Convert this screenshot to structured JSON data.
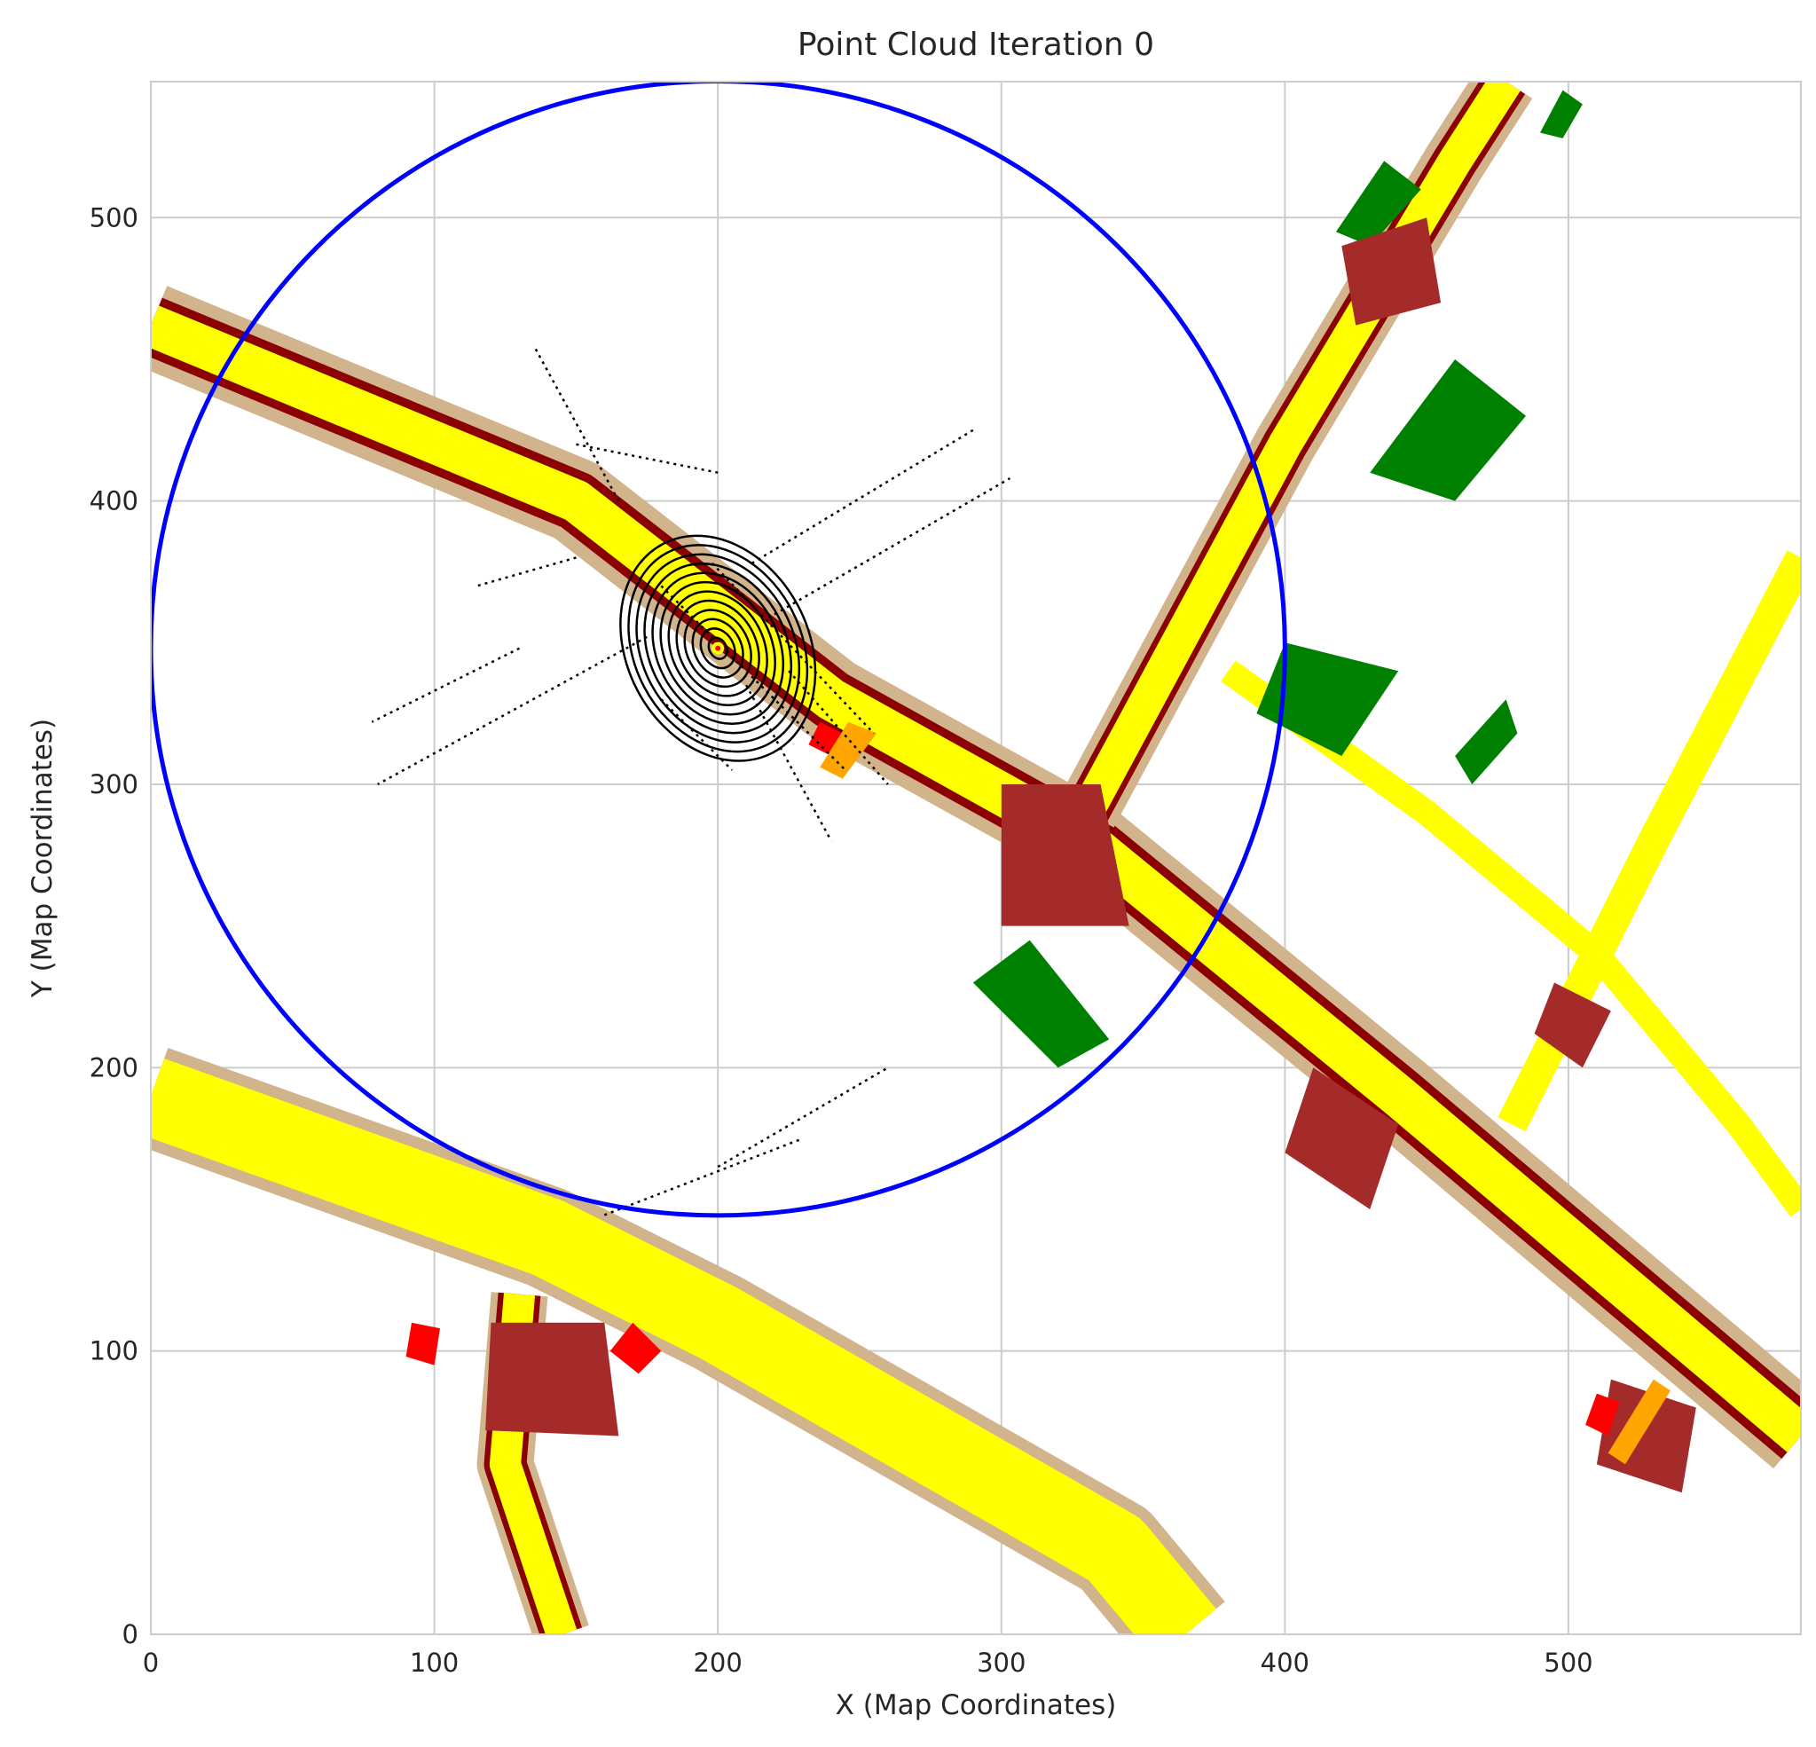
{
  "chart_data": {
    "type": "scatter",
    "title": "Point Cloud Iteration 0",
    "xlabel": "X (Map Coordinates)",
    "ylabel": "Y (Map Coordinates)",
    "xlim": [
      0,
      582
    ],
    "ylim": [
      0,
      548
    ],
    "xticks": [
      0,
      100,
      200,
      300,
      400,
      500
    ],
    "yticks": [
      0,
      100,
      200,
      300,
      400,
      500
    ],
    "grid": true,
    "background_map": {
      "colors": {
        "sidewalk": "#d2b48c",
        "lane": "#ffff00",
        "road_edge": "#8b0000",
        "crossing": "#a52a2a",
        "marker": "#ff0000",
        "stop_line": "#ffa500",
        "vegetation": "#008000"
      },
      "roads": [
        {
          "kind": "sidewalk",
          "width": 30,
          "points": [
            [
              0,
              462
            ],
            [
              150,
              400
            ],
            [
              240,
              330
            ],
            [
              330,
              280
            ],
            [
              440,
              190
            ],
            [
              582,
              70
            ]
          ]
        },
        {
          "kind": "road_edge",
          "width": 21,
          "points": [
            [
              0,
              462
            ],
            [
              150,
              400
            ],
            [
              240,
              330
            ],
            [
              330,
              280
            ],
            [
              440,
              190
            ],
            [
              582,
              70
            ]
          ]
        },
        {
          "kind": "lane",
          "width": 15,
          "points": [
            [
              0,
              462
            ],
            [
              150,
              400
            ],
            [
              240,
              330
            ],
            [
              330,
              280
            ],
            [
              440,
              190
            ],
            [
              582,
              70
            ]
          ]
        },
        {
          "kind": "sidewalk",
          "width": 36,
          "points": [
            [
              0,
              190
            ],
            [
              140,
              140
            ],
            [
              200,
              110
            ],
            [
              340,
              30
            ],
            [
              365,
              0
            ]
          ]
        },
        {
          "kind": "lane",
          "width": 28,
          "points": [
            [
              0,
              190
            ],
            [
              140,
              140
            ],
            [
              200,
              110
            ],
            [
              340,
              30
            ],
            [
              365,
              0
            ]
          ]
        },
        {
          "kind": "sidewalk",
          "width": 20,
          "points": [
            [
              130,
              120
            ],
            [
              125,
              60
            ],
            [
              145,
              0
            ]
          ]
        },
        {
          "kind": "road_edge",
          "width": 15,
          "points": [
            [
              130,
              120
            ],
            [
              125,
              60
            ],
            [
              145,
              0
            ]
          ]
        },
        {
          "kind": "lane",
          "width": 11,
          "points": [
            [
              130,
              120
            ],
            [
              125,
              60
            ],
            [
              145,
              0
            ]
          ]
        },
        {
          "kind": "sidewalk",
          "width": 22,
          "points": [
            [
              330,
              290
            ],
            [
              400,
              420
            ],
            [
              460,
              520
            ],
            [
              478,
              548
            ]
          ]
        },
        {
          "kind": "road_edge",
          "width": 16,
          "points": [
            [
              330,
              290
            ],
            [
              400,
              420
            ],
            [
              460,
              520
            ],
            [
              478,
              548
            ]
          ]
        },
        {
          "kind": "lane",
          "width": 12,
          "points": [
            [
              330,
              290
            ],
            [
              400,
              420
            ],
            [
              460,
              520
            ],
            [
              478,
              548
            ]
          ]
        },
        {
          "kind": "lane",
          "width": 9,
          "points": [
            [
              380,
              340
            ],
            [
              450,
              290
            ],
            [
              510,
              240
            ],
            [
              560,
              180
            ],
            [
              582,
              150
            ]
          ]
        },
        {
          "kind": "lane",
          "width": 11,
          "points": [
            [
              480,
              180
            ],
            [
              530,
              280
            ],
            [
              582,
              380
            ]
          ]
        }
      ],
      "areas": [
        {
          "kind": "vegetation",
          "points": [
            [
              430,
              410
            ],
            [
              460,
              450
            ],
            [
              485,
              430
            ],
            [
              460,
              400
            ]
          ]
        },
        {
          "kind": "vegetation",
          "points": [
            [
              400,
              350
            ],
            [
              440,
              340
            ],
            [
              420,
              310
            ],
            [
              390,
              325
            ]
          ]
        },
        {
          "kind": "vegetation",
          "points": [
            [
              290,
              230
            ],
            [
              320,
              200
            ],
            [
              338,
              210
            ],
            [
              310,
              245
            ]
          ]
        },
        {
          "kind": "vegetation",
          "points": [
            [
              418,
              495
            ],
            [
              435,
              520
            ],
            [
              448,
              510
            ],
            [
              430,
              490
            ]
          ]
        },
        {
          "kind": "vegetation",
          "points": [
            [
              460,
              310
            ],
            [
              478,
              330
            ],
            [
              482,
              318
            ],
            [
              466,
              300
            ]
          ]
        },
        {
          "kind": "vegetation",
          "points": [
            [
              490,
              530
            ],
            [
              498,
              545
            ],
            [
              505,
              540
            ],
            [
              498,
              528
            ]
          ]
        },
        {
          "kind": "crossing",
          "points": [
            [
              300,
              300
            ],
            [
              335,
              300
            ],
            [
              345,
              250
            ],
            [
              300,
              250
            ]
          ]
        },
        {
          "kind": "crossing",
          "points": [
            [
              120,
              110
            ],
            [
              160,
              110
            ],
            [
              165,
              70
            ],
            [
              118,
              72
            ]
          ]
        },
        {
          "kind": "crossing",
          "points": [
            [
              410,
              200
            ],
            [
              440,
              180
            ],
            [
              430,
              150
            ],
            [
              400,
              170
            ]
          ]
        },
        {
          "kind": "crossing",
          "points": [
            [
              515,
              90
            ],
            [
              545,
              80
            ],
            [
              540,
              50
            ],
            [
              510,
              60
            ]
          ]
        },
        {
          "kind": "crossing",
          "points": [
            [
              495,
              230
            ],
            [
              515,
              220
            ],
            [
              505,
              200
            ],
            [
              488,
              212
            ]
          ]
        },
        {
          "kind": "crossing",
          "points": [
            [
              420,
              490
            ],
            [
              450,
              500
            ],
            [
              455,
              470
            ],
            [
              425,
              462
            ]
          ]
        },
        {
          "kind": "marker",
          "points": [
            [
              92,
              110
            ],
            [
              102,
              108
            ],
            [
              100,
              95
            ],
            [
              90,
              98
            ]
          ]
        },
        {
          "kind": "marker",
          "points": [
            [
              170,
              110
            ],
            [
              180,
              100
            ],
            [
              172,
              92
            ],
            [
              162,
              100
            ]
          ]
        },
        {
          "kind": "marker",
          "points": [
            [
              510,
              85
            ],
            [
              518,
              82
            ],
            [
              514,
              70
            ],
            [
              506,
              74
            ]
          ]
        },
        {
          "kind": "marker",
          "points": [
            [
              236,
              322
            ],
            [
              244,
              318
            ],
            [
              240,
              310
            ],
            [
              232,
              314
            ]
          ]
        },
        {
          "kind": "stop_line",
          "points": [
            [
              246,
              322
            ],
            [
              256,
              318
            ],
            [
              244,
              302
            ],
            [
              236,
              306
            ]
          ]
        },
        {
          "kind": "stop_line",
          "points": [
            [
              530,
              90
            ],
            [
              536,
              86
            ],
            [
              520,
              60
            ],
            [
              514,
              64
            ]
          ]
        }
      ]
    },
    "circle": {
      "center": [
        200,
        348
      ],
      "radius": 200,
      "color": "#0000ff"
    },
    "ego_marker": [
      200,
      348
    ],
    "point_cloud": {
      "color": "#000000",
      "rings": {
        "center": [
          200,
          348
        ],
        "count": 12,
        "rx_min": 3,
        "rx_max": 32,
        "ry_ratio": 1.3
      },
      "lines": [
        [
          [
            180,
            370
          ],
          [
            245,
            305
          ]
        ],
        [
          [
            220,
            360
          ],
          [
            303,
            408
          ]
        ],
        [
          [
            212,
            378
          ],
          [
            290,
            425
          ]
        ],
        [
          [
            165,
            400
          ],
          [
            135,
            455
          ]
        ],
        [
          [
            150,
            380
          ],
          [
            115,
            370
          ]
        ],
        [
          [
            130,
            348
          ],
          [
            78,
            322
          ]
        ],
        [
          [
            175,
            352
          ],
          [
            80,
            300
          ]
        ],
        [
          [
            198,
            378
          ],
          [
            255,
            318
          ]
        ],
        [
          [
            160,
            148
          ],
          [
            230,
            175
          ]
        ],
        [
          [
            200,
            165
          ],
          [
            260,
            200
          ]
        ],
        [
          [
            225,
            340
          ],
          [
            260,
            300
          ]
        ],
        [
          [
            210,
            335
          ],
          [
            240,
            280
          ]
        ],
        [
          [
            150,
            420
          ],
          [
            200,
            410
          ]
        ],
        [
          [
            180,
            330
          ],
          [
            205,
            305
          ]
        ]
      ]
    }
  }
}
